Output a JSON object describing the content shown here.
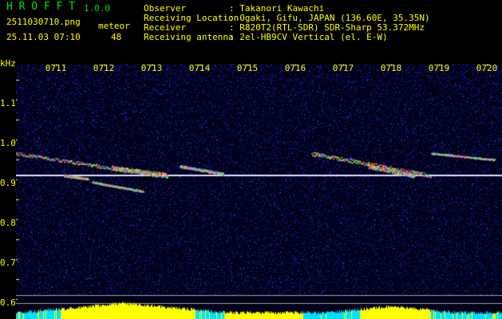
{
  "app": {
    "name": "H R O F F T",
    "version": "1.0.0"
  },
  "file": {
    "name": "2511030710.png",
    "datetime": "25.11.03 07:10"
  },
  "meteor": {
    "label": "meteor",
    "count": "48"
  },
  "info": [
    {
      "label": "Observer",
      "value": ": Takanori Kawachi"
    },
    {
      "label": "Receiving Location",
      "value": ": Ogaki, Gifu, JAPAN (136.60E, 35.35N)"
    },
    {
      "label": "Receiver",
      "value": ": R820T2(RTL-SDR) SDR-Sharp 53.372MHz"
    },
    {
      "label": "Receiving antenna",
      "value": ": 2el-HB9CV Vertical (el. E-W)"
    }
  ],
  "axis": {
    "unit": "kHz",
    "y_ticks": [
      "1.1",
      "1.0",
      "0.9",
      "0.8",
      "0.7",
      "0.6"
    ],
    "x_ticks": [
      "0711",
      "0712",
      "0713",
      "0714",
      "0715",
      "0716",
      "0717",
      "0718",
      "0719",
      "0720"
    ]
  },
  "colors": {
    "background": "#000000",
    "text": "#ffff00",
    "title": "#00e000",
    "noise": "#1020a0",
    "carrier": "#ffffff",
    "histogram": "#ffff00",
    "histogram_low": "#00e0ff"
  }
}
